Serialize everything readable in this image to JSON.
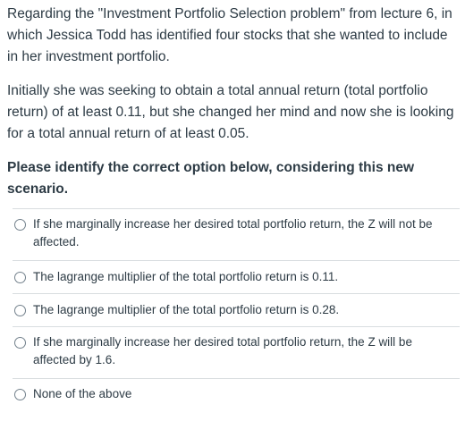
{
  "question": {
    "paragraph1": "Regarding the \"Investment Portfolio Selection problem\" from lecture 6, in which Jessica Todd has identified four stocks that she wanted to include in her investment portfolio.",
    "paragraph2": "Initially she was seeking to obtain a total annual return (total portfolio return) of at least 0.11, but she changed her mind and now she is looking for a total annual return of at least 0.05.",
    "prompt": "Please identify the correct option below, considering this new scenario."
  },
  "answers": [
    {
      "label": "If she marginally increase her desired total portfolio return, the Z will not be affected.",
      "selected": false
    },
    {
      "label": "The lagrange multiplier of the total portfolio return is 0.11.",
      "selected": false
    },
    {
      "label": "The lagrange multiplier of the total portfolio return is 0.28.",
      "selected": false
    },
    {
      "label": "If she marginally increase her desired total portfolio return, the Z will be affected by 1.6.",
      "selected": false
    },
    {
      "label": "None of the above",
      "selected": false
    }
  ],
  "colors": {
    "text": "#2d3b45",
    "divider": "#d9dde0",
    "radio_border": "#73818c"
  },
  "icons": {
    "answer_radio": "radio-button-unchecked"
  }
}
